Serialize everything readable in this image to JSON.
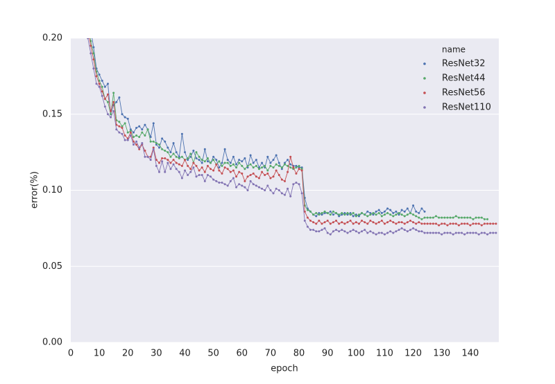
{
  "chart_data": {
    "type": "line",
    "x_label": "epoch",
    "y_label": "error(%)",
    "xlim": [
      0,
      150
    ],
    "ylim": [
      0,
      0.2
    ],
    "xticks": [
      0,
      10,
      20,
      30,
      40,
      50,
      60,
      70,
      80,
      90,
      100,
      110,
      120,
      130,
      140
    ],
    "yticks": [
      {
        "value": 0,
        "label": "0.00"
      },
      {
        "value": 0.05,
        "label": "0.05"
      },
      {
        "value": 0.1,
        "label": "0.10"
      },
      {
        "value": 0.15,
        "label": "0.15"
      },
      {
        "value": 0.2,
        "label": "0.20"
      }
    ],
    "grid": "y",
    "legend_title": "name",
    "legend_position": "upper right",
    "x": [
      6,
      7,
      8,
      9,
      10,
      11,
      12,
      13,
      14,
      15,
      16,
      17,
      18,
      19,
      20,
      21,
      22,
      23,
      24,
      25,
      26,
      27,
      28,
      29,
      30,
      31,
      32,
      33,
      34,
      35,
      36,
      37,
      38,
      39,
      40,
      41,
      42,
      43,
      44,
      45,
      46,
      47,
      48,
      49,
      50,
      51,
      52,
      53,
      54,
      55,
      56,
      57,
      58,
      59,
      60,
      61,
      62,
      63,
      64,
      65,
      66,
      67,
      68,
      69,
      70,
      71,
      72,
      73,
      74,
      75,
      76,
      77,
      78,
      79,
      80,
      81,
      82,
      83,
      84,
      85,
      86,
      87,
      88,
      89,
      90,
      91,
      92,
      93,
      94,
      95,
      96,
      97,
      98,
      99,
      100,
      101,
      102,
      103,
      104,
      105,
      106,
      107,
      108,
      109,
      110,
      111,
      112,
      113,
      114,
      115,
      116,
      117,
      118,
      119,
      120,
      121,
      122,
      123,
      124,
      125,
      126,
      127,
      128,
      129,
      130,
      131,
      132,
      133,
      134,
      135,
      136,
      137,
      138,
      139,
      140,
      141,
      142,
      143,
      144,
      145,
      146,
      147,
      148,
      149
    ],
    "series": [
      {
        "name": "ResNet32",
        "color": "#4c72b0",
        "values": [
          0.215,
          0.205,
          0.194,
          0.18,
          0.176,
          0.172,
          0.168,
          0.17,
          0.15,
          0.156,
          0.158,
          0.161,
          0.15,
          0.148,
          0.147,
          0.14,
          0.138,
          0.141,
          0.142,
          0.14,
          0.143,
          0.14,
          0.135,
          0.144,
          0.13,
          0.128,
          0.134,
          0.132,
          0.128,
          0.125,
          0.131,
          0.125,
          0.122,
          0.137,
          0.125,
          0.12,
          0.122,
          0.126,
          0.121,
          0.12,
          0.118,
          0.127,
          0.119,
          0.118,
          0.122,
          0.12,
          0.115,
          0.118,
          0.127,
          0.12,
          0.118,
          0.122,
          0.117,
          0.12,
          0.119,
          0.121,
          0.115,
          0.123,
          0.118,
          0.12,
          0.115,
          0.118,
          0.115,
          0.122,
          0.118,
          0.12,
          0.123,
          0.118,
          0.114,
          0.118,
          0.12,
          0.117,
          0.116,
          0.116,
          0.115,
          0.115,
          0.095,
          0.088,
          0.086,
          0.084,
          0.083,
          0.085,
          0.084,
          0.085,
          0.085,
          0.086,
          0.084,
          0.085,
          0.083,
          0.084,
          0.085,
          0.084,
          0.085,
          0.083,
          0.084,
          0.083,
          0.085,
          0.084,
          0.086,
          0.085,
          0.084,
          0.086,
          0.087,
          0.085,
          0.086,
          0.088,
          0.087,
          0.085,
          0.086,
          0.084,
          0.087,
          0.086,
          0.088,
          0.085,
          0.09,
          0.086,
          0.085,
          0.088,
          0.086,
          null,
          null,
          null,
          null,
          null,
          null,
          null,
          null,
          null,
          null,
          null,
          null,
          null,
          null,
          null,
          null,
          null,
          null,
          null,
          null,
          null,
          null,
          null,
          null,
          null
        ]
      },
      {
        "name": "ResNet44",
        "color": "#55a868",
        "values": [
          0.21,
          0.198,
          0.19,
          0.178,
          0.172,
          0.168,
          0.16,
          0.158,
          0.15,
          0.164,
          0.146,
          0.145,
          0.142,
          0.144,
          0.138,
          0.139,
          0.135,
          0.136,
          0.135,
          0.138,
          0.136,
          0.14,
          0.132,
          0.132,
          0.131,
          0.13,
          0.127,
          0.126,
          0.125,
          0.122,
          0.124,
          0.122,
          0.121,
          0.122,
          0.12,
          0.121,
          0.124,
          0.118,
          0.125,
          0.122,
          0.12,
          0.119,
          0.121,
          0.118,
          0.12,
          0.117,
          0.119,
          0.116,
          0.118,
          0.118,
          0.116,
          0.117,
          0.115,
          0.118,
          0.116,
          0.114,
          0.116,
          0.117,
          0.115,
          0.116,
          0.114,
          0.115,
          0.116,
          0.113,
          0.116,
          0.115,
          0.117,
          0.116,
          0.115,
          0.117,
          0.116,
          0.115,
          0.114,
          0.115,
          0.116,
          0.114,
          0.09,
          0.087,
          0.086,
          0.084,
          0.085,
          0.084,
          0.085,
          0.086,
          0.085,
          0.084,
          0.086,
          0.085,
          0.084,
          0.085,
          0.084,
          0.085,
          0.084,
          0.085,
          0.083,
          0.084,
          0.085,
          0.084,
          0.083,
          0.084,
          0.085,
          0.084,
          0.085,
          0.083,
          0.084,
          0.085,
          0.084,
          0.083,
          0.084,
          0.085,
          0.084,
          0.083,
          0.084,
          0.085,
          0.084,
          0.083,
          0.082,
          0.081,
          0.082,
          0.082,
          0.082,
          0.082,
          0.083,
          0.082,
          0.082,
          0.082,
          0.082,
          0.082,
          0.082,
          0.083,
          0.082,
          0.082,
          0.082,
          0.082,
          0.082,
          0.081,
          0.082,
          0.082,
          0.082,
          0.081,
          0.081,
          null,
          null,
          null
        ]
      },
      {
        "name": "ResNet56",
        "color": "#c44e52",
        "values": [
          0.205,
          0.195,
          0.186,
          0.175,
          0.17,
          0.165,
          0.16,
          0.163,
          0.152,
          0.158,
          0.143,
          0.142,
          0.141,
          0.136,
          0.134,
          0.138,
          0.132,
          0.13,
          0.127,
          0.13,
          0.126,
          0.122,
          0.122,
          0.128,
          0.12,
          0.118,
          0.121,
          0.121,
          0.12,
          0.118,
          0.12,
          0.118,
          0.117,
          0.116,
          0.12,
          0.116,
          0.114,
          0.118,
          0.116,
          0.113,
          0.115,
          0.112,
          0.116,
          0.114,
          0.113,
          0.117,
          0.113,
          0.111,
          0.115,
          0.114,
          0.112,
          0.113,
          0.109,
          0.112,
          0.111,
          0.106,
          0.109,
          0.11,
          0.111,
          0.109,
          0.108,
          0.112,
          0.11,
          0.111,
          0.108,
          0.109,
          0.113,
          0.11,
          0.107,
          0.106,
          0.112,
          0.122,
          0.115,
          0.111,
          0.114,
          0.113,
          0.086,
          0.082,
          0.08,
          0.079,
          0.078,
          0.08,
          0.078,
          0.079,
          0.08,
          0.078,
          0.079,
          0.08,
          0.078,
          0.079,
          0.078,
          0.079,
          0.08,
          0.078,
          0.079,
          0.078,
          0.08,
          0.079,
          0.078,
          0.08,
          0.079,
          0.078,
          0.079,
          0.08,
          0.078,
          0.079,
          0.08,
          0.079,
          0.078,
          0.079,
          0.079,
          0.078,
          0.079,
          0.08,
          0.079,
          0.078,
          0.079,
          0.078,
          0.078,
          0.078,
          0.078,
          0.078,
          0.078,
          0.077,
          0.078,
          0.078,
          0.077,
          0.078,
          0.078,
          0.078,
          0.077,
          0.078,
          0.078,
          0.078,
          0.077,
          0.078,
          0.078,
          0.078,
          0.077,
          0.078,
          0.078,
          0.078,
          0.078,
          0.078
        ]
      },
      {
        "name": "ResNet110",
        "color": "#8172b2",
        "values": [
          0.2,
          0.19,
          0.18,
          0.17,
          0.168,
          0.162,
          0.155,
          0.15,
          0.148,
          0.152,
          0.14,
          0.138,
          0.137,
          0.133,
          0.133,
          0.136,
          0.13,
          0.132,
          0.128,
          0.131,
          0.122,
          0.122,
          0.12,
          0.127,
          0.116,
          0.112,
          0.119,
          0.112,
          0.118,
          0.114,
          0.117,
          0.114,
          0.112,
          0.108,
          0.113,
          0.11,
          0.112,
          0.115,
          0.109,
          0.11,
          0.11,
          0.106,
          0.11,
          0.109,
          0.107,
          0.106,
          0.105,
          0.105,
          0.104,
          0.103,
          0.106,
          0.108,
          0.102,
          0.104,
          0.103,
          0.102,
          0.1,
          0.106,
          0.104,
          0.103,
          0.102,
          0.101,
          0.1,
          0.103,
          0.1,
          0.098,
          0.101,
          0.1,
          0.098,
          0.097,
          0.101,
          0.096,
          0.104,
          0.105,
          0.104,
          0.098,
          0.08,
          0.076,
          0.074,
          0.074,
          0.073,
          0.073,
          0.074,
          0.075,
          0.072,
          0.071,
          0.073,
          0.074,
          0.073,
          0.074,
          0.073,
          0.072,
          0.073,
          0.074,
          0.073,
          0.072,
          0.073,
          0.074,
          0.072,
          0.073,
          0.072,
          0.071,
          0.072,
          0.072,
          0.071,
          0.072,
          0.073,
          0.072,
          0.073,
          0.074,
          0.075,
          0.074,
          0.073,
          0.074,
          0.075,
          0.074,
          0.073,
          0.073,
          0.072,
          0.072,
          0.072,
          0.072,
          0.072,
          0.072,
          0.071,
          0.072,
          0.072,
          0.072,
          0.071,
          0.072,
          0.072,
          0.072,
          0.071,
          0.072,
          0.072,
          0.072,
          0.072,
          0.071,
          0.072,
          0.072,
          0.071,
          0.072,
          0.072,
          0.072
        ]
      }
    ]
  }
}
